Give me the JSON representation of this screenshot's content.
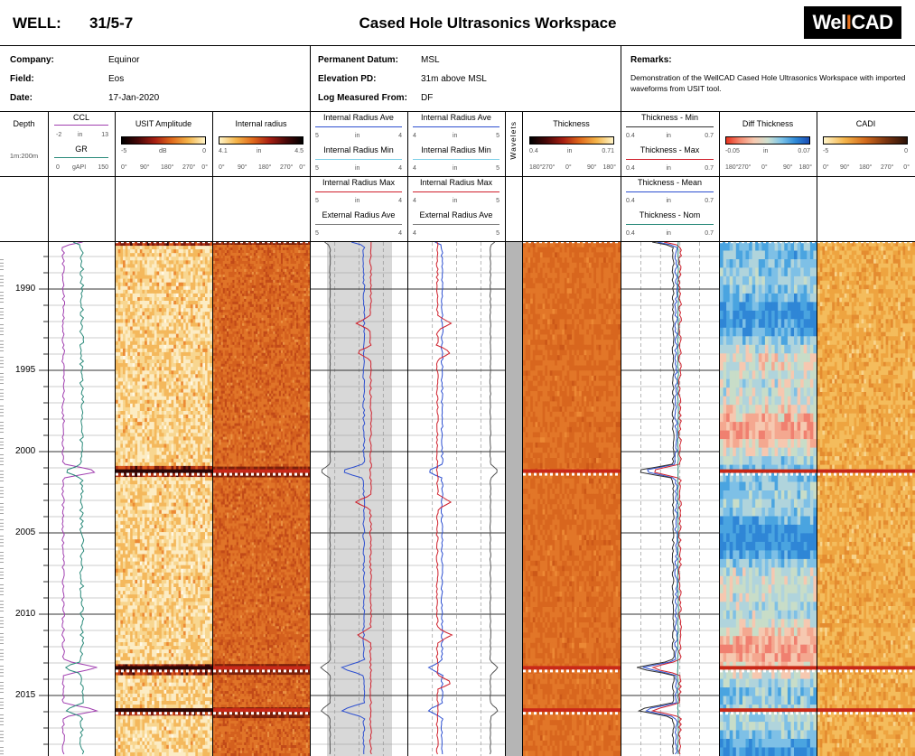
{
  "header": {
    "well_label": "WELL:",
    "well_value": "31/5-7",
    "title": "Cased Hole Ultrasonics Workspace",
    "logo_left": "Wel",
    "logo_bar": "I",
    "logo_right": "CAD"
  },
  "info": {
    "company_label": "Company:",
    "company": "Equinor",
    "field_label": "Field:",
    "field": "Eos",
    "date_label": "Date:",
    "date": "17-Jan-2020",
    "datum_label": "Permanent Datum:",
    "datum": "MSL",
    "elevation_label": "Elevation PD:",
    "elevation": "31m above MSL",
    "measured_label": "Log Measured From:",
    "measured": "DF",
    "remarks_label": "Remarks:",
    "remarks": "Demonstration of the WellCAD Cased Hole Ultrasonics Workspace with imported waveforms from USIT tool."
  },
  "tracks": {
    "depth": {
      "title": "Depth",
      "scale": "1m:200m"
    },
    "ccl": {
      "title": "CCL",
      "min": "-2",
      "unit": "in",
      "max": "13"
    },
    "gr": {
      "title": "GR",
      "min": "0",
      "unit": "gAPI",
      "max": "150"
    },
    "usit_amp": {
      "title": "USIT Amplitude",
      "min": "-5",
      "unit": "dB",
      "max": "0"
    },
    "int_radius": {
      "title": "Internal radius",
      "min": "4.1",
      "unit": "in",
      "max": "4.5"
    },
    "azimuth": [
      "0°",
      "90°",
      "180°",
      "270°",
      "0°"
    ],
    "azimuth_thk": [
      "180°",
      "270°",
      "0°",
      "90°",
      "180°"
    ],
    "c1": [
      {
        "title": "Internal Radius Ave",
        "min": "5",
        "unit": "in",
        "max": "4"
      },
      {
        "title": "Internal Radius Min",
        "min": "5",
        "unit": "in",
        "max": "4"
      },
      {
        "title": "Internal Radius Max",
        "min": "5",
        "unit": "in",
        "max": "4"
      },
      {
        "title": "External Radius Ave",
        "min": "5",
        "unit": "",
        "max": "4"
      }
    ],
    "c2": [
      {
        "title": "Internal Radius Ave",
        "min": "4",
        "unit": "in",
        "max": "5"
      },
      {
        "title": "Internal Radius Min",
        "min": "4",
        "unit": "in",
        "max": "5"
      },
      {
        "title": "Internal Radius Max",
        "min": "4",
        "unit": "in",
        "max": "5"
      },
      {
        "title": "External Radius Ave",
        "min": "4",
        "unit": "",
        "max": "5"
      }
    ],
    "wavelets": "Wavelets",
    "thickness": {
      "title": "Thickness",
      "min": "0.4",
      "unit": "in",
      "max": "0.71"
    },
    "thk_curves": [
      {
        "title": "Thickness - Min",
        "min": "0.4",
        "unit": "in",
        "max": "0.7"
      },
      {
        "title": "Thickness - Max",
        "min": "0.4",
        "unit": "in",
        "max": "0.7"
      },
      {
        "title": "Thickness - Mean",
        "min": "0.4",
        "unit": "in",
        "max": "0.7"
      },
      {
        "title": "Thickness - Nom",
        "min": "0.4",
        "unit": "in",
        "max": "0.7"
      }
    ],
    "diff_thk": {
      "title": "Diff Thickness",
      "min": "-0.05",
      "unit": "in",
      "max": "0.07"
    },
    "cadi": {
      "title": "CADI",
      "min": "-5",
      "unit": "",
      "max": "0"
    }
  },
  "depths": [
    "1990",
    "1995",
    "2000",
    "2005",
    "2010",
    "2015"
  ]
}
